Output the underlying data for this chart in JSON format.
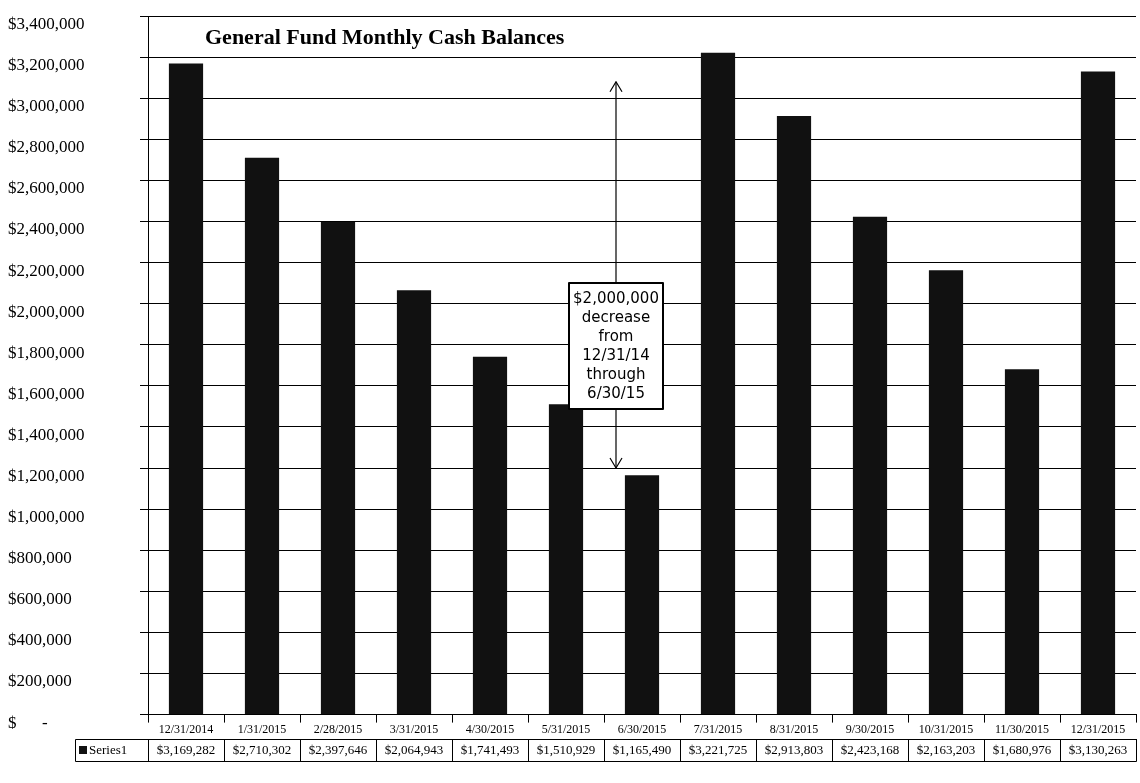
{
  "chart_data": {
    "type": "bar",
    "title": "General Fund Monthly Cash Balances",
    "categories": [
      "12/31/2014",
      "1/31/2015",
      "2/28/2015",
      "3/31/2015",
      "4/30/2015",
      "5/31/2015",
      "6/30/2015",
      "7/31/2015",
      "8/31/2015",
      "9/30/2015",
      "10/31/2015",
      "11/30/2015",
      "12/31/2015"
    ],
    "series": [
      {
        "name": "Series1",
        "color": "#111111",
        "values": [
          3169282,
          2710302,
          2397646,
          2064943,
          1741493,
          1510929,
          1165490,
          3221725,
          2913803,
          2423168,
          2163203,
          1680976,
          3130263
        ],
        "value_labels": [
          "$3,169,282",
          "$2,710,302",
          "$2,397,646",
          "$2,064,943",
          "$1,741,493",
          "$1,510,929",
          "$1,165,490",
          "$3,221,725",
          "$2,913,803",
          "$2,423,168",
          "$2,163,203",
          "$1,680,976",
          "$3,130,263"
        ]
      }
    ],
    "ylim": [
      0,
      3400000
    ],
    "yticks": [
      {
        "value": 0,
        "label": "$      -"
      },
      {
        "value": 200000,
        "label": "$200,000"
      },
      {
        "value": 400000,
        "label": "$400,000"
      },
      {
        "value": 600000,
        "label": "$600,000"
      },
      {
        "value": 800000,
        "label": "$800,000"
      },
      {
        "value": 1000000,
        "label": "$1,000,000"
      },
      {
        "value": 1200000,
        "label": "$1,200,000"
      },
      {
        "value": 1400000,
        "label": "$1,400,000"
      },
      {
        "value": 1600000,
        "label": "$1,600,000"
      },
      {
        "value": 1800000,
        "label": "$1,800,000"
      },
      {
        "value": 2000000,
        "label": "$2,000,000"
      },
      {
        "value": 2200000,
        "label": "$2,200,000"
      },
      {
        "value": 2400000,
        "label": "$2,400,000"
      },
      {
        "value": 2600000,
        "label": "$2,600,000"
      },
      {
        "value": 2800000,
        "label": "$2,800,000"
      },
      {
        "value": 3000000,
        "label": "$3,000,000"
      },
      {
        "value": 3200000,
        "label": "$3,200,000"
      },
      {
        "value": 3400000,
        "label": "$3,400,000"
      }
    ],
    "annotations": [
      "$2,000,000 decrease from 12/31/14 through 6/30/15"
    ],
    "grid": "y",
    "legend": "bottom"
  }
}
